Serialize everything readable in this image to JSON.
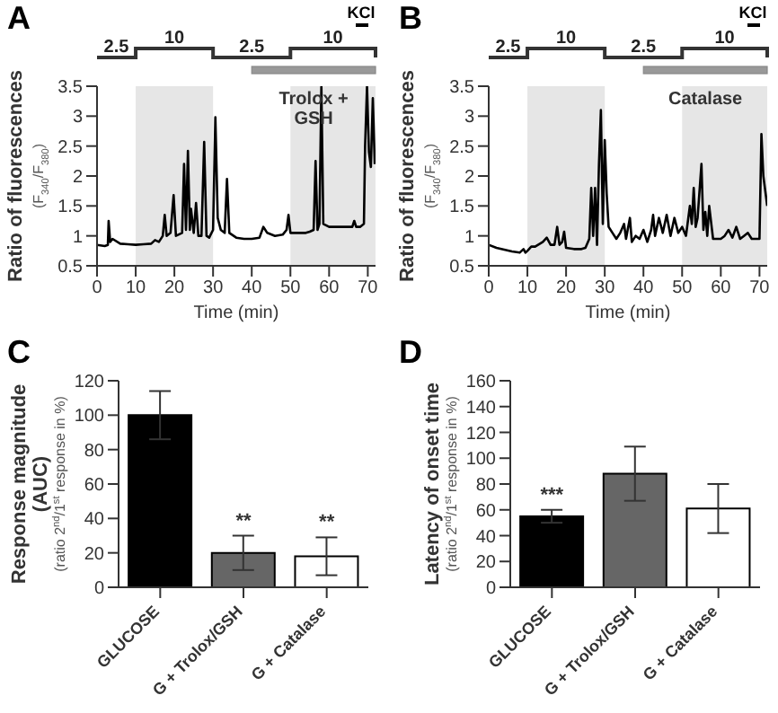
{
  "chart_data": [
    {
      "type": "line",
      "title": "A",
      "xlabel": "Time (min)",
      "ylabel": "Ratio of fluorescences",
      "annotations": [
        "(F$_{340}$/F$_{380}$)",
        "2.5",
        "2.5",
        "KCl",
        "Trolox + GSH"
      ],
      "x": [
        0,
        2,
        2.8,
        3,
        3.4,
        4,
        6,
        8,
        10,
        12,
        14,
        15,
        16,
        17,
        17.5,
        18,
        19,
        19.8,
        20.4,
        22,
        22.5,
        23,
        23.5,
        24,
        24.3,
        25,
        25.6,
        26.2,
        27,
        27.7,
        28.3,
        29,
        30,
        30.6,
        31.2,
        32,
        33,
        33.6,
        34.2,
        36,
        38,
        40,
        42,
        43,
        44,
        46,
        48,
        49,
        49.5,
        50,
        52,
        54,
        55,
        56,
        56.5,
        57,
        57.5,
        58,
        58.5,
        60,
        62,
        64,
        66,
        66.5,
        67,
        68,
        69,
        69.3,
        69.8,
        70.3,
        70.8,
        71.3,
        71.8
      ],
      "series": [
        {
          "color": "#000000",
          "values": [
            0.85,
            0.83,
            0.85,
            1.25,
            0.9,
            0.95,
            0.87,
            0.86,
            0.85,
            0.86,
            0.87,
            0.93,
            0.9,
            1.0,
            1.35,
            1.0,
            1.05,
            1.68,
            1.0,
            1.05,
            2.2,
            1.1,
            2.42,
            1.1,
            1.45,
            1.05,
            1.55,
            1.0,
            1.0,
            2.57,
            1.0,
            0.97,
            1.1,
            2.98,
            1.3,
            1.1,
            1.05,
            1.95,
            1.05,
            0.97,
            0.95,
            0.95,
            0.97,
            1.15,
            1.05,
            1.0,
            1.02,
            1.1,
            1.35,
            1.05,
            1.05,
            1.05,
            1.07,
            1.1,
            2.25,
            1.1,
            1.2,
            3.5,
            1.2,
            1.15,
            1.15,
            1.15,
            1.15,
            1.25,
            1.15,
            1.15,
            1.2,
            2.5,
            3.5,
            2.4,
            2.15,
            3.3,
            2.2
          ]
        }
      ],
      "xlim": [
        0,
        72
      ],
      "xticks": [
        0,
        10,
        20,
        30,
        40,
        50,
        60,
        70
      ],
      "ylim": [
        0.5,
        3.5
      ],
      "yticks": [
        0.5,
        1,
        1.5,
        2,
        2.5,
        3,
        3.5
      ],
      "bands": [
        {
          "axis": "x",
          "from": 10,
          "to": 30,
          "label": "10",
          "color": "#e6e6e6"
        },
        {
          "axis": "x",
          "from": 50,
          "to": 72,
          "label": "10",
          "color": "#e6e6e6"
        }
      ]
    },
    {
      "type": "line",
      "title": "B",
      "xlabel": "Time (min)",
      "ylabel": "Ratio of fluorescences",
      "annotations": [
        "(F$_{340}$/F$_{380}$)",
        "2.5",
        "2.5",
        "KCl",
        "Catalase"
      ],
      "x": [
        0,
        2,
        4,
        6,
        8,
        9,
        9.5,
        10,
        11,
        12,
        14,
        15,
        16,
        17,
        17.7,
        18.3,
        19,
        19.5,
        20,
        22,
        24,
        25,
        26,
        26.5,
        27,
        27.5,
        28,
        28.5,
        29,
        29.5,
        30,
        30.5,
        31,
        32,
        33,
        34,
        35,
        35.5,
        36.5,
        37,
        38,
        39,
        40,
        41,
        42,
        42.5,
        43,
        44,
        45,
        46,
        47,
        48,
        49,
        50,
        51,
        52,
        52.5,
        53,
        53.5,
        54,
        55,
        55.5,
        56,
        56.5,
        57,
        58,
        60,
        61,
        62,
        63,
        64,
        65,
        66,
        67,
        68,
        70,
        70.5,
        71,
        72
      ],
      "series": [
        {
          "color": "#000000",
          "values": [
            0.85,
            0.8,
            0.77,
            0.74,
            0.72,
            0.78,
            0.72,
            0.75,
            0.82,
            0.82,
            0.9,
            0.97,
            0.85,
            0.85,
            1.15,
            0.85,
            0.9,
            1.07,
            0.8,
            0.78,
            0.78,
            0.8,
            0.95,
            1.8,
            1.0,
            1.8,
            0.85,
            2.2,
            3.1,
            1.2,
            2.6,
            1.7,
            1.15,
            1.05,
            0.95,
            1.05,
            1.2,
            0.95,
            1.3,
            0.9,
            1.0,
            0.95,
            1.1,
            0.9,
            1.1,
            1.35,
            1.0,
            1.3,
            1.05,
            1.35,
            1.0,
            1.3,
            1.05,
            1.15,
            1.0,
            1.5,
            1.2,
            1.8,
            1.15,
            1.3,
            2.2,
            1.1,
            1.4,
            1.0,
            1.5,
            0.95,
            0.95,
            1.0,
            1.1,
            0.97,
            1.15,
            0.95,
            1.0,
            1.05,
            0.95,
            0.95,
            2.7,
            2.0,
            1.5
          ]
        }
      ],
      "xlim": [
        0,
        72
      ],
      "xticks": [
        0,
        10,
        20,
        30,
        40,
        50,
        60,
        70
      ],
      "ylim": [
        0.5,
        3.5
      ],
      "yticks": [
        0.5,
        1,
        1.5,
        2,
        2.5,
        3,
        3.5
      ],
      "bands": [
        {
          "axis": "x",
          "from": 10,
          "to": 30,
          "label": "10",
          "color": "#e6e6e6"
        },
        {
          "axis": "x",
          "from": 50,
          "to": 72,
          "label": "10",
          "color": "#e6e6e6"
        }
      ]
    },
    {
      "type": "bar",
      "title": "C",
      "ylabel": "Response magnitude (AUC)",
      "annotations": [
        "(ratio 2$^{nd}$/1$^{st}$ response in %)",
        {
          "text": "**",
          "x": "G + Trolox/GSH",
          "y": 20
        },
        {
          "text": "**",
          "x": "G + Catalase",
          "y": 18
        }
      ],
      "categories": [
        "GLUCOSE",
        "G + Trolox/GSH",
        "G + Catalase"
      ],
      "values": [
        100,
        20,
        18
      ],
      "errors": [
        14,
        10,
        11
      ],
      "colors": [
        "#000000",
        "#666666",
        "#ffffff"
      ],
      "ylim": [
        0,
        120
      ],
      "yticks": [
        0,
        20,
        40,
        60,
        80,
        100,
        120
      ]
    },
    {
      "type": "bar",
      "title": "D",
      "ylabel": "Latency of onset time",
      "annotations": [
        "(ratio 2$^{nd}$/1$^{st}$ response in %)",
        {
          "text": "***",
          "x": "GLUCOSE",
          "y": 55
        }
      ],
      "categories": [
        "GLUCOSE",
        "G + Trolox/GSH",
        "G + Catalase"
      ],
      "values": [
        55,
        88,
        61
      ],
      "errors": [
        5,
        21,
        19
      ],
      "colors": [
        "#000000",
        "#666666",
        "#ffffff"
      ],
      "ylim": [
        0,
        160
      ],
      "yticks": [
        0,
        20,
        40,
        60,
        80,
        100,
        120,
        140,
        160
      ]
    }
  ]
}
